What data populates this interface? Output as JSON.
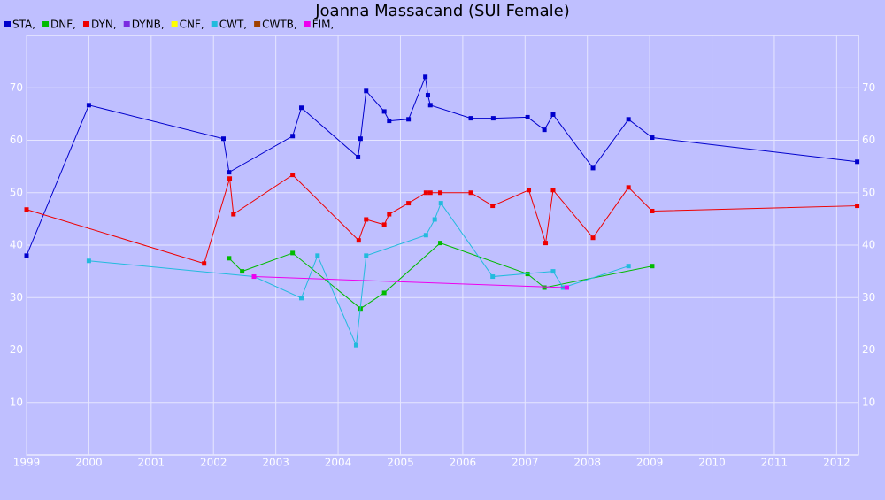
{
  "chart_data": {
    "type": "line",
    "title": "Joanna Massacand (SUI Female)",
    "xlim": [
      1999,
      2012.35
    ],
    "xticks": [
      1999,
      2000,
      2001,
      2002,
      2003,
      2004,
      2005,
      2006,
      2007,
      2008,
      2009,
      2010,
      2011,
      2012
    ],
    "ylim": [
      0,
      80
    ],
    "yticks": [
      10,
      20,
      30,
      40,
      50,
      60,
      70
    ],
    "grid": true,
    "series": [
      {
        "name": "STA,",
        "color": "#0000cc",
        "x": [
          1999.0,
          2000.0,
          2002.16,
          2002.25,
          2003.27,
          2003.41,
          2004.32,
          2004.36,
          2004.45,
          2004.74,
          2004.82,
          2005.13,
          2005.4,
          2005.44,
          2005.48,
          2006.13,
          2006.49,
          2007.04,
          2007.31,
          2007.45,
          2008.09,
          2008.66,
          2009.04,
          2012.33
        ],
        "values": [
          38.0,
          66.7,
          60.3,
          53.9,
          60.8,
          66.2,
          56.8,
          60.3,
          69.4,
          65.5,
          63.7,
          64.0,
          72.1,
          68.6,
          66.7,
          64.2,
          64.2,
          64.4,
          62.0,
          64.9,
          54.7,
          64.0,
          60.5,
          55.9
        ]
      },
      {
        "name": "DNF,",
        "color": "#00bb00",
        "x": [
          2002.25,
          2002.46,
          2003.27,
          2004.36,
          2004.74,
          2005.64,
          2007.04,
          2007.31,
          2009.04
        ],
        "values": [
          37.5,
          35.0,
          38.5,
          27.9,
          30.9,
          40.4,
          34.5,
          31.9,
          36.0
        ]
      },
      {
        "name": "DYN,",
        "color": "#ee0000",
        "x": [
          1999.0,
          2001.85,
          2002.26,
          2002.32,
          2003.27,
          2004.33,
          2004.45,
          2004.74,
          2004.82,
          2005.13,
          2005.41,
          2005.48,
          2005.64,
          2006.13,
          2006.48,
          2007.06,
          2007.33,
          2007.45,
          2008.09,
          2008.66,
          2009.04,
          2012.33
        ],
        "values": [
          46.8,
          36.5,
          52.7,
          45.9,
          53.4,
          40.9,
          44.9,
          43.9,
          45.9,
          48.0,
          50.0,
          50.0,
          50.0,
          50.0,
          47.5,
          50.5,
          40.4,
          50.5,
          41.4,
          51.0,
          46.5,
          47.5
        ]
      },
      {
        "name": "DYNB,",
        "color": "#7a2be0",
        "x": [],
        "values": []
      },
      {
        "name": "CNF,",
        "color": "#ffff00",
        "x": [],
        "values": []
      },
      {
        "name": "CWT,",
        "color": "#22bbdd",
        "x": [
          2000.0,
          2002.65,
          2003.41,
          2003.67,
          2004.29,
          2004.45,
          2005.41,
          2005.55,
          2005.65,
          2006.48,
          2007.45,
          2007.61,
          2008.66
        ],
        "values": [
          37.0,
          34.0,
          29.9,
          38.0,
          20.9,
          38.0,
          41.9,
          44.9,
          48.0,
          34.0,
          35.0,
          31.9,
          36.0
        ]
      },
      {
        "name": "CWTB,",
        "color": "#a04000",
        "x": [],
        "values": []
      },
      {
        "name": "FIM,",
        "color": "#ee00ee",
        "x": [
          2002.65,
          2007.67
        ],
        "values": [
          34.0,
          31.9
        ]
      }
    ]
  }
}
